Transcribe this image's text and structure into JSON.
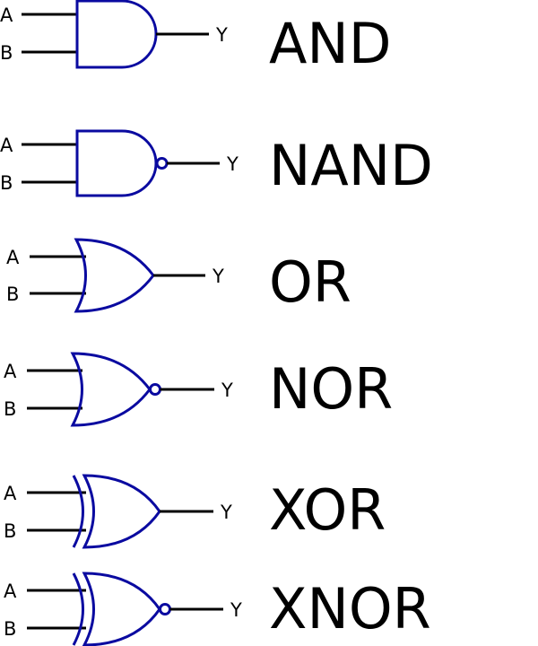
{
  "colors": {
    "gate_outline": "#0a0aa0",
    "wire": "#000000",
    "text": "#000000",
    "background": "#ffffff"
  },
  "gates": [
    {
      "type": "and",
      "name": "AND",
      "inputs": [
        "A",
        "B"
      ],
      "output": "Y"
    },
    {
      "type": "nand",
      "name": "NAND",
      "inputs": [
        "A",
        "B"
      ],
      "output": "Y"
    },
    {
      "type": "or",
      "name": "OR",
      "inputs": [
        "A",
        "B"
      ],
      "output": "Y"
    },
    {
      "type": "nor",
      "name": "NOR",
      "inputs": [
        "A",
        "B"
      ],
      "output": "Y"
    },
    {
      "type": "xor",
      "name": "XOR",
      "inputs": [
        "A",
        "B"
      ],
      "output": "Y"
    },
    {
      "type": "xnor",
      "name": "XNOR",
      "inputs": [
        "A",
        "B"
      ],
      "output": "Y"
    }
  ]
}
